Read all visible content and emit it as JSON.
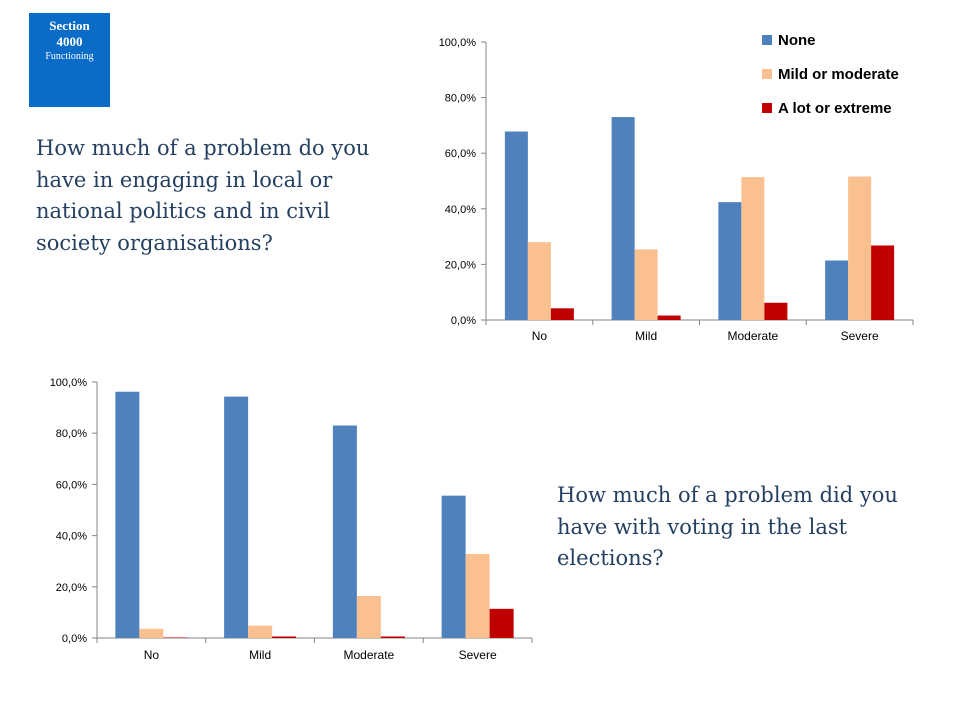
{
  "section": {
    "title_line1": "Section",
    "title_line2": "4000",
    "subtitle": "Functioning",
    "color": "#0a6cc6"
  },
  "questions": {
    "politics": "How much of a problem do you have in engaging in local or national politics and in civil society organisations?",
    "voting": "How much of a problem did you have with voting in the last elections?"
  },
  "chart_data": [
    {
      "type": "bar",
      "categories": [
        "No",
        "Mild",
        "Moderate",
        "Severe"
      ],
      "series": [
        {
          "name": "None",
          "color": "#4f81bd",
          "values": [
            67.8,
            73.0,
            42.4,
            21.4
          ]
        },
        {
          "name": "Mild or moderate",
          "color": "#fac090",
          "values": [
            28.0,
            25.4,
            51.4,
            51.6
          ]
        },
        {
          "name": "A lot or extreme",
          "color": "#c00000",
          "values": [
            4.2,
            1.6,
            6.2,
            26.8
          ]
        }
      ],
      "yticks": [
        "0,0%",
        "20,0%",
        "40,0%",
        "60,0%",
        "80,0%",
        "100,0%"
      ],
      "ylim": [
        0,
        100
      ],
      "legend": "top-right",
      "grid": false
    },
    {
      "type": "bar",
      "categories": [
        "No",
        "Mild",
        "Moderate",
        "Severe"
      ],
      "series": [
        {
          "name": "None",
          "color": "#4f81bd",
          "values": [
            96.2,
            94.3,
            83.0,
            55.6
          ]
        },
        {
          "name": "Mild or moderate",
          "color": "#fac090",
          "values": [
            3.6,
            4.8,
            16.4,
            32.8
          ]
        },
        {
          "name": "A lot or extreme",
          "color": "#c00000",
          "values": [
            0.2,
            0.6,
            0.6,
            11.4
          ]
        }
      ],
      "yticks": [
        "0,0%",
        "20,0%",
        "40,0%",
        "60,0%",
        "80,0%",
        "100,0%"
      ],
      "ylim": [
        0,
        100
      ],
      "legend": "none",
      "grid": false
    }
  ]
}
